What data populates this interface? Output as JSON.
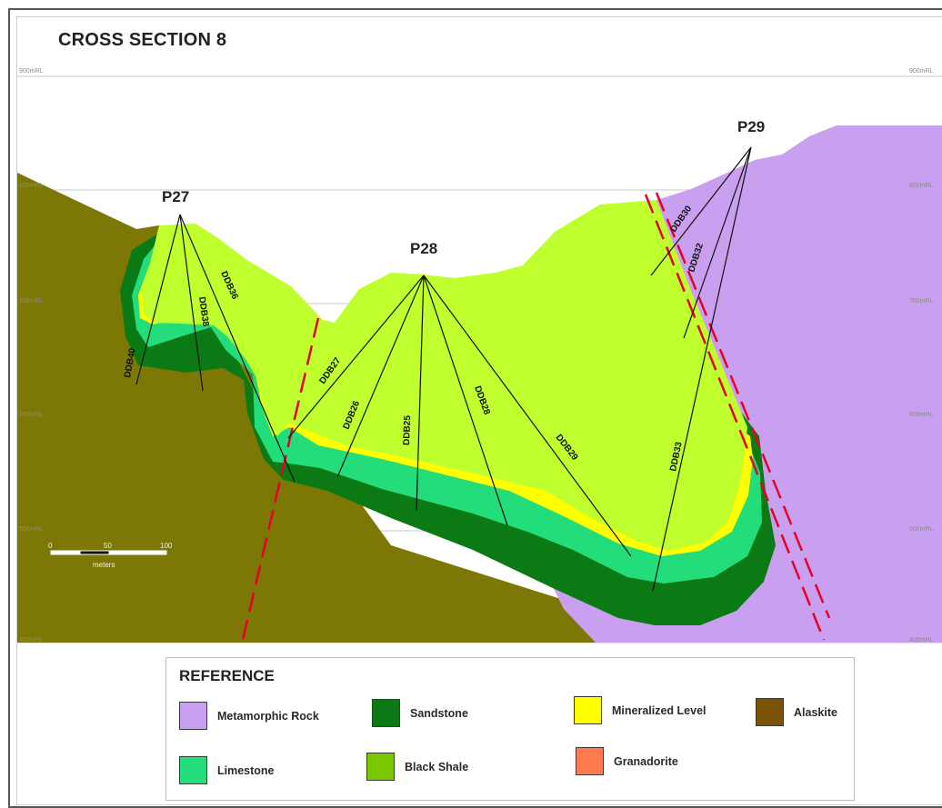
{
  "title": "CROSS SECTION 8",
  "levels": {
    "left": [
      "900mRL",
      "800mRL",
      "700mRL",
      "600mRL",
      "500mRL",
      "400mRL"
    ],
    "right": [
      "900mRL",
      "800mRL",
      "700mRL",
      "600mRL",
      "500mRL",
      "400mRL"
    ]
  },
  "collars": {
    "p27": "P27",
    "p28": "P28",
    "p29": "P29"
  },
  "drill_holes": {
    "ddb40": "DDB40",
    "ddb38": "DDB38",
    "ddb36": "DDB36",
    "ddb27": "DDB27",
    "ddb26": "DDB26",
    "ddb25": "DDB25",
    "ddb28": "DDB28",
    "ddb29": "DDB29",
    "ddb30": "DDB30",
    "ddb32": "DDB32",
    "ddb33": "DDB33"
  },
  "scale": {
    "tick0": "0",
    "tick1": "50",
    "tick2": "100",
    "unit": "meters"
  },
  "legend": {
    "title": "REFERENCE",
    "items": [
      {
        "label": "Metamorphic Rock",
        "color": "#c9a0ef"
      },
      {
        "label": "Sandstone",
        "color": "#0b7a14"
      },
      {
        "label": "Mineralized Level",
        "color": "#ffff00"
      },
      {
        "label": "Alaskite",
        "color": "#7a5306"
      },
      {
        "label": "Limestone",
        "color": "#22dd7a"
      },
      {
        "label": "Black Shale",
        "color": "#7cc800"
      },
      {
        "label": "Granadorite",
        "color": "#ff7a4e"
      }
    ]
  },
  "colors": {
    "alaskite_ground": "#7d7805",
    "metamorphic": "#c9a0ef",
    "sandstone": "#0b7a14",
    "limestone": "#22dd7a",
    "mineralized": "#ffff00",
    "black_shale": "#bfff2e",
    "fault": "#e8002a",
    "drill_line": "#111111"
  }
}
